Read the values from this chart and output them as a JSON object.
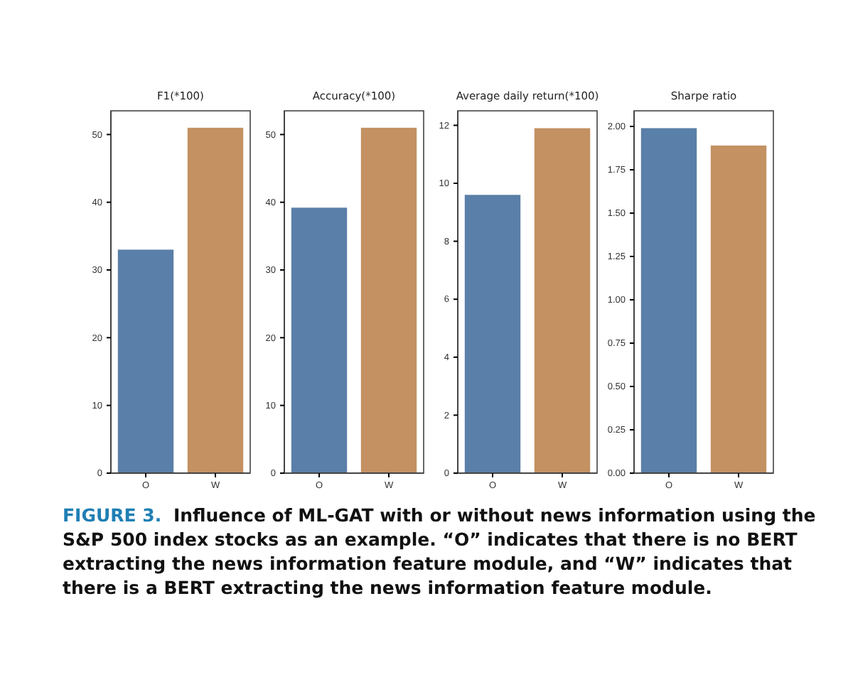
{
  "chart_data": [
    {
      "type": "bar",
      "title": "F1(*100)",
      "categories": [
        "O",
        "W"
      ],
      "values": [
        33,
        51
      ],
      "colors": [
        "#5a7fa8",
        "#c39162"
      ],
      "ylim": [
        0,
        53.5
      ],
      "yticks": [
        0,
        10,
        20,
        30,
        40,
        50
      ],
      "grid": false,
      "annotations": [
        "FIGURE 3.",
        "Influence of ML-GAT with or without news information using the S&P 500 index stocks as an example. “O” indicates that there is no BERT extracting the news information feature module, and “W” indicates that there is a BERT extracting the news information feature module."
      ]
    },
    {
      "type": "bar",
      "title": "Accuracy(*100)",
      "categories": [
        "O",
        "W"
      ],
      "values": [
        39.2,
        51
      ],
      "colors": [
        "#5a7fa8",
        "#c39162"
      ],
      "ylim": [
        0,
        53.5
      ],
      "yticks": [
        0,
        10,
        20,
        30,
        40,
        50
      ],
      "grid": false
    },
    {
      "type": "bar",
      "title": "Average daily return(*100)",
      "categories": [
        "O",
        "W"
      ],
      "values": [
        9.6,
        11.9
      ],
      "colors": [
        "#5a7fa8",
        "#c39162"
      ],
      "ylim": [
        0,
        12.5
      ],
      "yticks": [
        0,
        2,
        4,
        6,
        8,
        10,
        12
      ],
      "grid": false
    },
    {
      "type": "bar",
      "title": "Sharpe ratio",
      "categories": [
        "O",
        "W"
      ],
      "values": [
        1.99,
        1.89
      ],
      "colors": [
        "#5a7fa8",
        "#c39162"
      ],
      "ylim": [
        0,
        2.09
      ],
      "yticks": [
        {
          "value": 0,
          "label": "0.00"
        },
        {
          "value": 0.25,
          "label": "0.25"
        },
        {
          "value": 0.5,
          "label": "0.50"
        },
        {
          "value": 0.75,
          "label": "0.75"
        },
        {
          "value": 1,
          "label": "1.00"
        },
        {
          "value": 1.25,
          "label": "1.25"
        },
        {
          "value": 1.5,
          "label": "1.50"
        },
        {
          "value": 1.75,
          "label": "1.75"
        },
        {
          "value": 2,
          "label": "2.00"
        }
      ],
      "grid": false
    }
  ]
}
